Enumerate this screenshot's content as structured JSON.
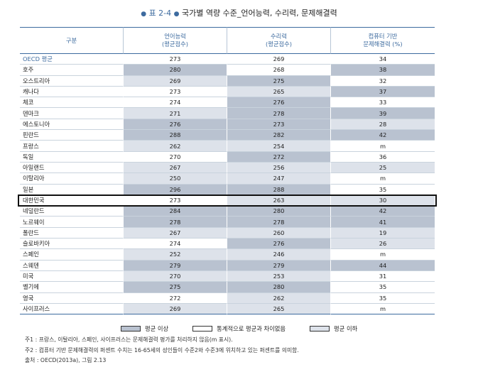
{
  "title": {
    "number": "표 2-4",
    "text": "국가별 역량 수준_언어능력, 수리력, 문제해결력"
  },
  "colors": {
    "accent": "#3d6b9f",
    "above": "#b9c2d0",
    "not_significant": "#ffffff",
    "below": "#dde2ea",
    "highlight_border": "#111111"
  },
  "table": {
    "headers": {
      "country": "구분",
      "literacy": [
        "언어능력",
        "(평균점수)"
      ],
      "numeracy": [
        "수리력",
        "(평균점수)"
      ],
      "problem_solving": [
        "컴퓨터 기반",
        "문제해결력 (%)"
      ]
    },
    "rows": [
      {
        "country": "OECD 평균",
        "literacy": "273",
        "lit_cls": "ns",
        "numeracy": "269",
        "num_cls": "ns",
        "problem_solving": "34",
        "ps_cls": "ns"
      },
      {
        "country": "호주",
        "literacy": "280",
        "lit_cls": "above",
        "numeracy": "268",
        "num_cls": "ns",
        "problem_solving": "38",
        "ps_cls": "above"
      },
      {
        "country": "오스트리아",
        "literacy": "269",
        "lit_cls": "below",
        "numeracy": "275",
        "num_cls": "above",
        "problem_solving": "32",
        "ps_cls": "ns"
      },
      {
        "country": "캐나다",
        "literacy": "273",
        "lit_cls": "ns",
        "numeracy": "265",
        "num_cls": "below",
        "problem_solving": "37",
        "ps_cls": "above"
      },
      {
        "country": "체코",
        "literacy": "274",
        "lit_cls": "ns",
        "numeracy": "276",
        "num_cls": "above",
        "problem_solving": "33",
        "ps_cls": "ns"
      },
      {
        "country": "덴마크",
        "literacy": "271",
        "lit_cls": "below",
        "numeracy": "278",
        "num_cls": "above",
        "problem_solving": "39",
        "ps_cls": "above"
      },
      {
        "country": "에스토니아",
        "literacy": "276",
        "lit_cls": "above",
        "numeracy": "273",
        "num_cls": "above",
        "problem_solving": "28",
        "ps_cls": "below"
      },
      {
        "country": "핀란드",
        "literacy": "288",
        "lit_cls": "above",
        "numeracy": "282",
        "num_cls": "above",
        "problem_solving": "42",
        "ps_cls": "above"
      },
      {
        "country": "프랑스",
        "literacy": "262",
        "lit_cls": "below",
        "numeracy": "254",
        "num_cls": "below",
        "problem_solving": "m",
        "ps_cls": "ns"
      },
      {
        "country": "독일",
        "literacy": "270",
        "lit_cls": "ns",
        "numeracy": "272",
        "num_cls": "above",
        "problem_solving": "36",
        "ps_cls": "ns"
      },
      {
        "country": "아일랜드",
        "literacy": "267",
        "lit_cls": "below",
        "numeracy": "256",
        "num_cls": "below",
        "problem_solving": "25",
        "ps_cls": "below"
      },
      {
        "country": "이탈리아",
        "literacy": "250",
        "lit_cls": "below",
        "numeracy": "247",
        "num_cls": "below",
        "problem_solving": "m",
        "ps_cls": "ns"
      },
      {
        "country": "일본",
        "literacy": "296",
        "lit_cls": "above",
        "numeracy": "288",
        "num_cls": "above",
        "problem_solving": "35",
        "ps_cls": "ns"
      },
      {
        "country": "대한민국",
        "literacy": "273",
        "lit_cls": "ns",
        "numeracy": "263",
        "num_cls": "below",
        "problem_solving": "30",
        "ps_cls": "below"
      },
      {
        "country": "네덜란드",
        "literacy": "284",
        "lit_cls": "above",
        "numeracy": "280",
        "num_cls": "above",
        "problem_solving": "42",
        "ps_cls": "above"
      },
      {
        "country": "노르웨이",
        "literacy": "278",
        "lit_cls": "above",
        "numeracy": "278",
        "num_cls": "above",
        "problem_solving": "41",
        "ps_cls": "above"
      },
      {
        "country": "폴란드",
        "literacy": "267",
        "lit_cls": "below",
        "numeracy": "260",
        "num_cls": "below",
        "problem_solving": "19",
        "ps_cls": "below"
      },
      {
        "country": "슬로바키아",
        "literacy": "274",
        "lit_cls": "ns",
        "numeracy": "276",
        "num_cls": "above",
        "problem_solving": "26",
        "ps_cls": "below"
      },
      {
        "country": "스페인",
        "literacy": "252",
        "lit_cls": "below",
        "numeracy": "246",
        "num_cls": "below",
        "problem_solving": "m",
        "ps_cls": "ns"
      },
      {
        "country": "스웨덴",
        "literacy": "279",
        "lit_cls": "above",
        "numeracy": "279",
        "num_cls": "above",
        "problem_solving": "44",
        "ps_cls": "above"
      },
      {
        "country": "미국",
        "literacy": "270",
        "lit_cls": "below",
        "numeracy": "253",
        "num_cls": "below",
        "problem_solving": "31",
        "ps_cls": "ns"
      },
      {
        "country": "벨기에",
        "literacy": "275",
        "lit_cls": "above",
        "numeracy": "280",
        "num_cls": "above",
        "problem_solving": "35",
        "ps_cls": "ns"
      },
      {
        "country": "영국",
        "literacy": "272",
        "lit_cls": "ns",
        "numeracy": "262",
        "num_cls": "below",
        "problem_solving": "35",
        "ps_cls": "ns"
      },
      {
        "country": "사이프러스",
        "literacy": "269",
        "lit_cls": "below",
        "numeracy": "265",
        "num_cls": "below",
        "problem_solving": "m",
        "ps_cls": "ns"
      }
    ],
    "highlighted_country": "대한민국"
  },
  "legend": {
    "above": "평균 이상",
    "not_significant": "통계적으로 평균과 차이없음",
    "below": "평균 이하"
  },
  "notes": [
    "주1 : 프랑스, 이탈리아, 스페인, 사이프러스는 문제해결력 평가를 처리하지 않음(m 표시).",
    "주2 : 컴퓨터 기반 문제해결력의 퍼센트 수치는 16-65세의 성인들이 수준2와 수준3에 위치하고 있는 퍼센트를 의미함.",
    "출처 : OECD(2013a), 그림 2.13"
  ]
}
